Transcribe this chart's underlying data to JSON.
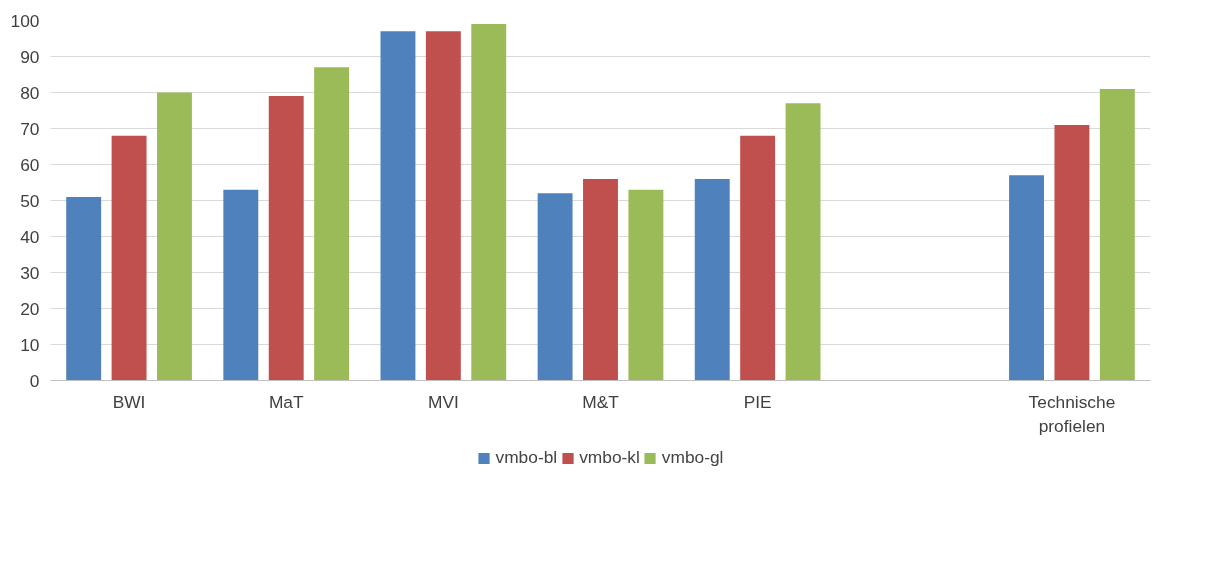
{
  "chart_data": {
    "type": "bar",
    "categories": [
      "BWI",
      "MaT",
      "MVI",
      "M&T",
      "PIE",
      null,
      "Technische profielen"
    ],
    "series": [
      {
        "name": "vmbo-bl",
        "color": "#4f81bd",
        "values": [
          51,
          53,
          97,
          52,
          56,
          null,
          57
        ]
      },
      {
        "name": "vmbo-kl",
        "color": "#c0504d",
        "values": [
          68,
          79,
          97,
          56,
          68,
          null,
          71
        ]
      },
      {
        "name": "vmbo-gl",
        "color": "#9bbb59",
        "values": [
          80,
          87,
          99,
          53,
          77,
          null,
          81
        ]
      }
    ],
    "ylim": [
      0,
      100
    ],
    "yticks": [
      0,
      10,
      20,
      30,
      40,
      50,
      60,
      70,
      80,
      90,
      100
    ],
    "grid": "y",
    "legend": "bottom"
  }
}
